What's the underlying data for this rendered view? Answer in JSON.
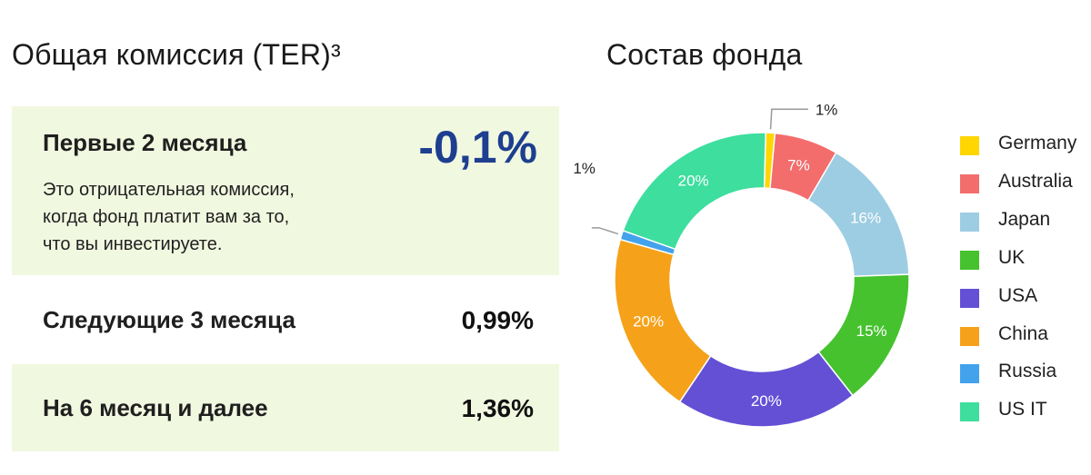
{
  "ter": {
    "title": "Общая комиссия (TER)³",
    "rows": [
      {
        "label": "Первые 2 месяца",
        "value": "-0,1%",
        "description": [
          "Это отрицательная комиссия,",
          "когда фонд платит вам за то,",
          "что вы инвестируете."
        ]
      },
      {
        "label": "Следующие 3 месяца",
        "value": "0,99%"
      },
      {
        "label": "На 6 месяц и далее",
        "value": "1,36%"
      }
    ],
    "colors": {
      "highlight_bg": "#f1f8e0",
      "accent_value": "#1e3f8f"
    }
  },
  "fund": {
    "title": "Состав фонда"
  },
  "chart_data": {
    "type": "pie",
    "donut": true,
    "title": "Состав фонда",
    "legend_position": "right",
    "slices": [
      {
        "name": "Germany",
        "value": 1,
        "label": "1%",
        "color": "#ffd600"
      },
      {
        "name": "Australia",
        "value": 7,
        "label": "7%",
        "color": "#f36d6d"
      },
      {
        "name": "Japan",
        "value": 16,
        "label": "16%",
        "color": "#9dcde3"
      },
      {
        "name": "UK",
        "value": 15,
        "label": "15%",
        "color": "#45c22e"
      },
      {
        "name": "USA",
        "value": 20,
        "label": "20%",
        "color": "#6350d5"
      },
      {
        "name": "China",
        "value": 20,
        "label": "20%",
        "color": "#f5a21a"
      },
      {
        "name": "Russia",
        "value": 1,
        "label": "1%",
        "color": "#43a2ec"
      },
      {
        "name": "US IT",
        "value": 20,
        "label": "20%",
        "color": "#3dde9e"
      }
    ]
  }
}
